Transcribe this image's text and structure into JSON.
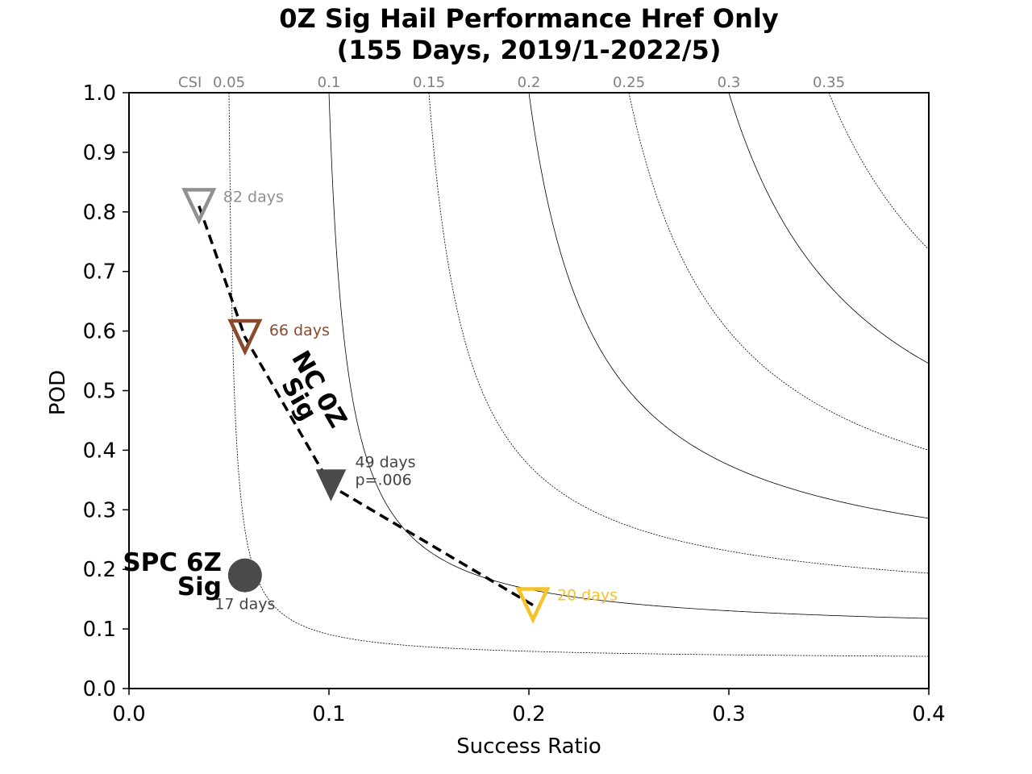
{
  "chart_data": {
    "type": "scatter",
    "title": "0Z Sig Hail Performance Href Only",
    "subtitle": "(155 Days, 2019/1-2022/5)",
    "xlabel": "Success Ratio",
    "ylabel": "POD",
    "xlim": [
      0.0,
      0.4
    ],
    "ylim": [
      0.0,
      1.0
    ],
    "xticks": [
      "0.0",
      "0.1",
      "0.2",
      "0.3",
      "0.4"
    ],
    "yticks": [
      "0.0",
      "0.1",
      "0.2",
      "0.3",
      "0.4",
      "0.5",
      "0.6",
      "0.7",
      "0.8",
      "0.9",
      "1.0"
    ],
    "grid": false,
    "csi_contours": {
      "label": "CSI",
      "values": [
        0.05,
        0.1,
        0.15,
        0.2,
        0.25,
        0.3,
        0.35
      ],
      "labels": [
        "0.05",
        "0.1",
        "0.15",
        "0.2",
        "0.25",
        "0.3",
        "0.35"
      ],
      "styles": [
        "dotted",
        "solid",
        "dotted",
        "solid",
        "dotted",
        "solid",
        "dotted"
      ]
    },
    "series": [
      {
        "name": "NC 0Z Sig",
        "line_style": "dashed",
        "points": [
          {
            "x": 0.035,
            "y": 0.81,
            "label": "82 days",
            "marker": "triangle-down-open",
            "color": "#909090"
          },
          {
            "x": 0.058,
            "y": 0.59,
            "label": "66 days",
            "marker": "triangle-down-open",
            "color": "#8B4A2B"
          },
          {
            "x": 0.101,
            "y": 0.34,
            "label": "49 days",
            "label2": "p=.006",
            "marker": "triangle-down-filled",
            "color": "#4a4a4a"
          },
          {
            "x": 0.202,
            "y": 0.14,
            "label": "20 days",
            "marker": "triangle-down-open",
            "color": "#F5C22A"
          }
        ]
      },
      {
        "name": "SPC 6Z Sig",
        "points": [
          {
            "x": 0.058,
            "y": 0.19,
            "label": "17 days",
            "marker": "circle-filled",
            "color": "#4a4a4a"
          }
        ]
      }
    ],
    "annotations": {
      "nc_label_line1": "NC 0Z",
      "nc_label_line2": "Sig",
      "spc_label_line1": "SPC 6Z",
      "spc_label_line2": "Sig"
    }
  }
}
